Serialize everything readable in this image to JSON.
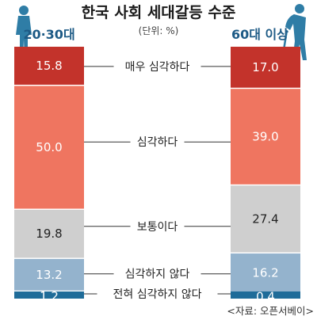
{
  "chart_data": {
    "type": "bar",
    "stacked": true,
    "title": "한국 사회 세대갈등 수준",
    "unit": "(단위: %)",
    "source": "<자료: 오픈서베이>",
    "groups": [
      "20·30대",
      "60대 이상"
    ],
    "categories": [
      "매우 심각하다",
      "심각하다",
      "보통이다",
      "심각하지 않다",
      "전혀 심각하지 않다"
    ],
    "series": [
      {
        "values": [
          15.8,
          50.0,
          19.8,
          13.2,
          1.2
        ]
      },
      {
        "values": [
          17.0,
          39.0,
          27.4,
          16.2,
          0.4
        ]
      }
    ],
    "colors": [
      "#c3332b",
      "#ef7560",
      "#cfcfcf",
      "#94b3cd",
      "#1f6c99"
    ],
    "text_colors": [
      "#ffffff",
      "#ffffff",
      "#222222",
      "#ffffff",
      "#ffffff"
    ],
    "ylim": [
      0,
      100
    ]
  }
}
